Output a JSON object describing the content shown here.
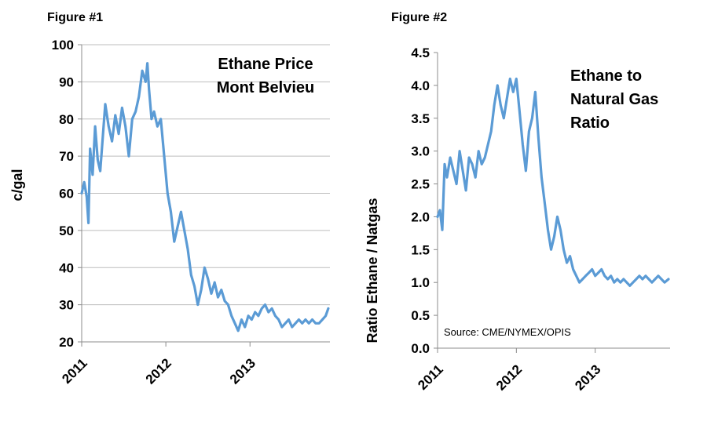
{
  "figures": [
    {
      "title": "Figure #1"
    },
    {
      "title": "Figure #2"
    }
  ],
  "source": "Source: CME/NYMEX/OPIS",
  "chart_data": [
    {
      "type": "line",
      "title": "Ethane Price Mont Belvieu",
      "title_lines": [
        "Ethane Price",
        "Mont Belvieu"
      ],
      "ylabel": "c/gal",
      "xlabel": "",
      "ylim": [
        20,
        100
      ],
      "yticks": [
        20,
        30,
        40,
        50,
        60,
        70,
        80,
        90,
        100
      ],
      "ytick_labels": [
        "20",
        "30",
        "40",
        "50",
        "60",
        "70",
        "80",
        "90",
        "100"
      ],
      "xlim": [
        2011.0,
        2013.95
      ],
      "xticks": [
        2011,
        2012,
        2013
      ],
      "xtick_labels": [
        "2011",
        "2012",
        "2013"
      ],
      "grid": true,
      "line_color": "#5b9bd5",
      "x": [
        2011.0,
        2011.03,
        2011.06,
        2011.08,
        2011.1,
        2011.13,
        2011.16,
        2011.19,
        2011.22,
        2011.25,
        2011.28,
        2011.32,
        2011.36,
        2011.4,
        2011.44,
        2011.48,
        2011.52,
        2011.56,
        2011.6,
        2011.64,
        2011.68,
        2011.72,
        2011.76,
        2011.78,
        2011.8,
        2011.83,
        2011.86,
        2011.9,
        2011.94,
        2011.98,
        2012.02,
        2012.06,
        2012.1,
        2012.14,
        2012.18,
        2012.22,
        2012.26,
        2012.3,
        2012.34,
        2012.38,
        2012.42,
        2012.46,
        2012.5,
        2012.54,
        2012.58,
        2012.62,
        2012.66,
        2012.7,
        2012.74,
        2012.78,
        2012.82,
        2012.86,
        2012.9,
        2012.94,
        2012.98,
        2013.02,
        2013.06,
        2013.1,
        2013.14,
        2013.18,
        2013.22,
        2013.26,
        2013.3,
        2013.34,
        2013.38,
        2013.42,
        2013.46,
        2013.5,
        2013.54,
        2013.58,
        2013.62,
        2013.66,
        2013.7,
        2013.74,
        2013.78,
        2013.82,
        2013.86,
        2013.9,
        2013.93
      ],
      "y": [
        60,
        63,
        59,
        52,
        72,
        65,
        78,
        69,
        66,
        75,
        84,
        78,
        74,
        81,
        76,
        83,
        78,
        70,
        80,
        82,
        86,
        93,
        90,
        95,
        88,
        80,
        82,
        78,
        80,
        70,
        60,
        55,
        47,
        51,
        55,
        50,
        45,
        38,
        35,
        30,
        34,
        40,
        37,
        33,
        36,
        32,
        34,
        31,
        30,
        27,
        25,
        23,
        26,
        24,
        27,
        26,
        28,
        27,
        29,
        30,
        28,
        29,
        27,
        26,
        24,
        25,
        26,
        24,
        25,
        26,
        25,
        26,
        25,
        26,
        25,
        25,
        26,
        27,
        29
      ]
    },
    {
      "type": "line",
      "title": "Ethane to Natural Gas Ratio",
      "title_lines": [
        "Ethane to",
        "Natural Gas",
        "Ratio"
      ],
      "ylabel": "Ratio Ethane / Natgas",
      "xlabel": "",
      "ylim": [
        0.0,
        4.5
      ],
      "yticks": [
        0.0,
        0.5,
        1.0,
        1.5,
        2.0,
        2.5,
        3.0,
        3.5,
        4.0,
        4.5
      ],
      "ytick_labels": [
        "0.0",
        "0.5",
        "1.0",
        "1.5",
        "2.0",
        "2.5",
        "3.0",
        "3.5",
        "4.0",
        "4.5"
      ],
      "xlim": [
        2011.0,
        2013.95
      ],
      "xticks": [
        2011,
        2012,
        2013
      ],
      "xtick_labels": [
        "2011",
        "2012",
        "2013"
      ],
      "grid": false,
      "line_color": "#5b9bd5",
      "x": [
        2011.0,
        2011.03,
        2011.06,
        2011.09,
        2011.12,
        2011.16,
        2011.2,
        2011.24,
        2011.28,
        2011.32,
        2011.36,
        2011.4,
        2011.44,
        2011.48,
        2011.52,
        2011.56,
        2011.6,
        2011.64,
        2011.68,
        2011.72,
        2011.76,
        2011.8,
        2011.84,
        2011.88,
        2011.92,
        2011.96,
        2012.0,
        2012.04,
        2012.08,
        2012.12,
        2012.16,
        2012.2,
        2012.24,
        2012.28,
        2012.32,
        2012.36,
        2012.4,
        2012.44,
        2012.48,
        2012.52,
        2012.56,
        2012.6,
        2012.64,
        2012.68,
        2012.72,
        2012.76,
        2012.8,
        2012.84,
        2012.88,
        2012.92,
        2012.96,
        2013.0,
        2013.04,
        2013.08,
        2013.12,
        2013.16,
        2013.2,
        2013.24,
        2013.28,
        2013.32,
        2013.36,
        2013.4,
        2013.44,
        2013.48,
        2013.52,
        2013.56,
        2013.6,
        2013.64,
        2013.68,
        2013.72,
        2013.76,
        2013.8,
        2013.84,
        2013.88,
        2013.93
      ],
      "y": [
        2.0,
        2.1,
        1.8,
        2.8,
        2.6,
        2.9,
        2.7,
        2.5,
        3.0,
        2.7,
        2.4,
        2.9,
        2.8,
        2.6,
        3.0,
        2.8,
        2.9,
        3.1,
        3.3,
        3.7,
        4.0,
        3.7,
        3.5,
        3.8,
        4.1,
        3.9,
        4.1,
        3.6,
        3.1,
        2.7,
        3.3,
        3.5,
        3.9,
        3.2,
        2.6,
        2.2,
        1.8,
        1.5,
        1.7,
        2.0,
        1.8,
        1.5,
        1.3,
        1.4,
        1.2,
        1.1,
        1.0,
        1.05,
        1.1,
        1.15,
        1.2,
        1.1,
        1.15,
        1.2,
        1.1,
        1.05,
        1.1,
        1.0,
        1.05,
        1.0,
        1.05,
        1.0,
        0.95,
        1.0,
        1.05,
        1.1,
        1.05,
        1.1,
        1.05,
        1.0,
        1.05,
        1.1,
        1.05,
        1.0,
        1.05
      ]
    }
  ]
}
